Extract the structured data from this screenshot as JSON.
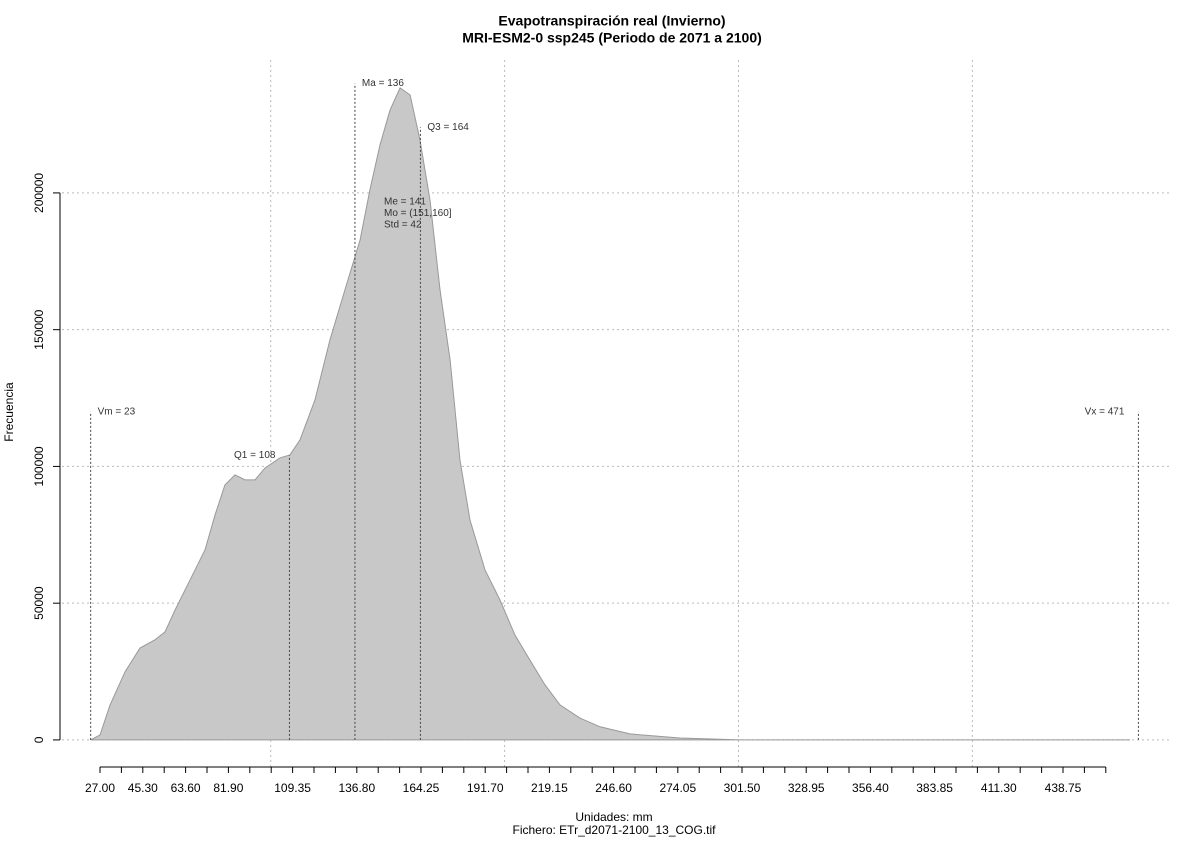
{
  "chart_data": {
    "type": "area",
    "title": "Evapotranspiración real (Invierno)",
    "subtitle": "MRI-ESM2-0 ssp245 (Periodo de 2071 a 2100)",
    "xlabel": "Unidades: mm",
    "ylabel": "Frecuencia",
    "footnote": "Fichero: ETr_d2071-2100_13_COG.tif",
    "x": [
      23,
      27,
      31.3,
      37.7,
      44.1,
      50.5,
      54.8,
      59.1,
      65.5,
      71.9,
      76.2,
      80.4,
      84.7,
      89.0,
      93.3,
      97.5,
      103.9,
      108.2,
      112.5,
      118.9,
      125.3,
      131.7,
      138.2,
      142.4,
      146.7,
      151.0,
      155.3,
      159.6,
      163.8,
      168.1,
      172.4,
      176.7,
      180.9,
      185.2,
      191.6,
      198.0,
      204.4,
      210.8,
      217.3,
      223.7,
      232.2,
      240.8,
      253.6,
      275.0,
      300.6,
      467.4
    ],
    "series": [
      {
        "name": "Frecuencia",
        "color": "#c8c8c8",
        "values": [
          0,
          1800,
          12800,
          24900,
          33600,
          36600,
          39500,
          47500,
          58500,
          69500,
          82300,
          93200,
          96900,
          95100,
          95100,
          99400,
          103100,
          104200,
          109700,
          124300,
          146200,
          164500,
          182800,
          201100,
          217500,
          230300,
          238400,
          235800,
          219400,
          197400,
          164500,
          138900,
          102400,
          80400,
          62200,
          51200,
          38400,
          29200,
          20100,
          12800,
          8000,
          4800,
          2200,
          700,
          0,
          0
        ]
      }
    ],
    "xlim": [
      10.75,
      484.5
    ],
    "ylim": [
      -9900,
      248600
    ],
    "xticks": [
      {
        "value": 27,
        "label": "27.00"
      },
      {
        "value": 45.3,
        "label": "45.30"
      },
      {
        "value": 63.6,
        "label": "63.60"
      },
      {
        "value": 81.9,
        "label": "81.90"
      },
      {
        "value": 109.35,
        "label": "109.35"
      },
      {
        "value": 136.8,
        "label": "136.80"
      },
      {
        "value": 164.25,
        "label": "164.25"
      },
      {
        "value": 191.7,
        "label": "191.70"
      },
      {
        "value": 219.15,
        "label": "219.15"
      },
      {
        "value": 246.6,
        "label": "246.60"
      },
      {
        "value": 274.05,
        "label": "274.05"
      },
      {
        "value": 301.5,
        "label": "301.50"
      },
      {
        "value": 328.95,
        "label": "328.95"
      },
      {
        "value": 356.4,
        "label": "356.40"
      },
      {
        "value": 383.85,
        "label": "383.85"
      },
      {
        "value": 411.3,
        "label": "411.30"
      },
      {
        "value": 438.75,
        "label": "438.75"
      }
    ],
    "xminor_ticks": [
      27,
      36.15,
      45.3,
      54.45,
      63.6,
      72.75,
      81.9,
      91.05,
      100.2,
      109.35,
      118.5,
      127.65,
      136.8,
      145.95,
      155.1,
      164.25,
      173.4,
      182.55,
      191.7,
      200.85,
      210,
      219.15,
      228.3,
      237.45,
      246.6,
      255.75,
      264.9,
      274.05,
      283.2,
      292.35,
      301.5,
      310.65,
      319.8,
      328.95,
      338.1,
      347.25,
      356.4,
      365.55,
      374.7,
      383.85,
      393,
      402.15,
      411.3,
      420.45,
      429.6,
      438.75,
      447.9,
      457.05
    ],
    "xgrid": [
      100,
      200,
      300,
      400
    ],
    "yticks": [
      0,
      50000,
      100000,
      150000,
      200000
    ],
    "grid": true,
    "markers": [
      {
        "label": "Vm = 23",
        "x": 23,
        "y": 120000,
        "side": "right"
      },
      {
        "label": "Q1 = 108",
        "x": 108,
        "y": 104000,
        "side": "left"
      },
      {
        "label": "Ma = 136",
        "x": 136,
        "y": 240000,
        "side": "right"
      },
      {
        "label": "Q3 = 164",
        "x": 164,
        "y": 224000,
        "side": "right"
      },
      {
        "label": "Vx = 471",
        "x": 471,
        "y": 120000,
        "side": "left"
      }
    ],
    "stats": [
      "Me = 141",
      "Mo = (151,160]",
      "Std = 42"
    ]
  }
}
